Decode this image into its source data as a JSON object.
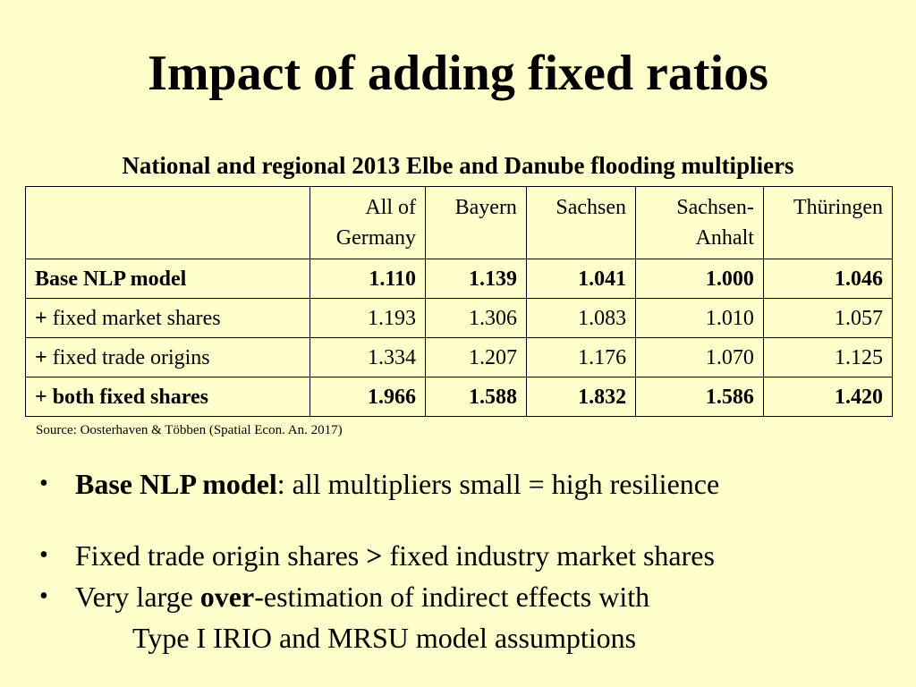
{
  "slide": {
    "title": "Impact of adding fixed ratios"
  },
  "table": {
    "caption": "National and regional 2013 Elbe and Danube flooding multipliers",
    "header": {
      "germany_line1": "All of",
      "germany_line2": "Germany",
      "bayern": "Bayern",
      "sachsen": "Sachsen",
      "sa_line1": "Sachsen-",
      "sa_line2": "Anhalt",
      "thueringen": "Thüringen"
    },
    "rows": [
      {
        "plus": "",
        "label": "Base NLP model",
        "values": [
          "1.110",
          "1.139",
          "1.041",
          "1.000",
          "1.046"
        ]
      },
      {
        "plus": "+",
        "label": " fixed market shares",
        "values": [
          "1.193",
          "1.306",
          "1.083",
          "1.010",
          "1.057"
        ]
      },
      {
        "plus": "+",
        "label": " fixed trade origins",
        "values": [
          "1.334",
          "1.207",
          "1.176",
          "1.070",
          "1.125"
        ]
      },
      {
        "plus": "+",
        "label": " both fixed shares",
        "values": [
          "1.966",
          "1.588",
          "1.832",
          "1.586",
          "1.420"
        ]
      }
    ],
    "source": "Source: Oosterhaven & Többen (Spatial Econ. An. 2017)"
  },
  "bullets": {
    "marker": "•",
    "b1_bold": "Base NLP model",
    "b1_rest": ": all multipliers small = high resilience",
    "b2_pre": "Fixed trade origin shares ",
    "b2_gt": ">",
    "b2_post": " fixed industry market shares",
    "b3_pre": "Very large ",
    "b3_bold": "over",
    "b3_post": "-estimation of indirect effects with",
    "b3_line2": "Type I IRIO and MRSU model assumptions"
  }
}
